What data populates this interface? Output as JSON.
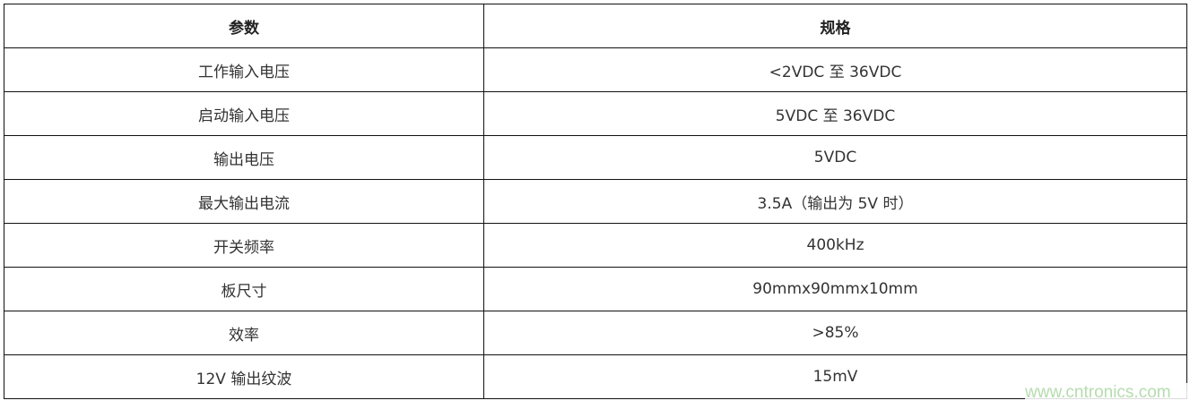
{
  "header": {
    "param": "参数",
    "spec": "规格"
  },
  "rows": [
    {
      "param": "工作输入电压",
      "spec": "<2VDC 至 36VDC"
    },
    {
      "param": "启动输入电压",
      "spec": "5VDC 至 36VDC"
    },
    {
      "param": "输出电压",
      "spec": "5VDC"
    },
    {
      "param": "最大输出电流",
      "spec": "3.5A（输出为 5V 时）"
    },
    {
      "param": "开关频率",
      "spec": "400kHz"
    },
    {
      "param": "板尺寸",
      "spec": "90mmx90mmx10mm"
    },
    {
      "param": "效率",
      "spec": ">85%"
    },
    {
      "param": "12V 输出纹波",
      "spec": "15mV"
    }
  ],
  "watermark": "www.cntronics.com"
}
